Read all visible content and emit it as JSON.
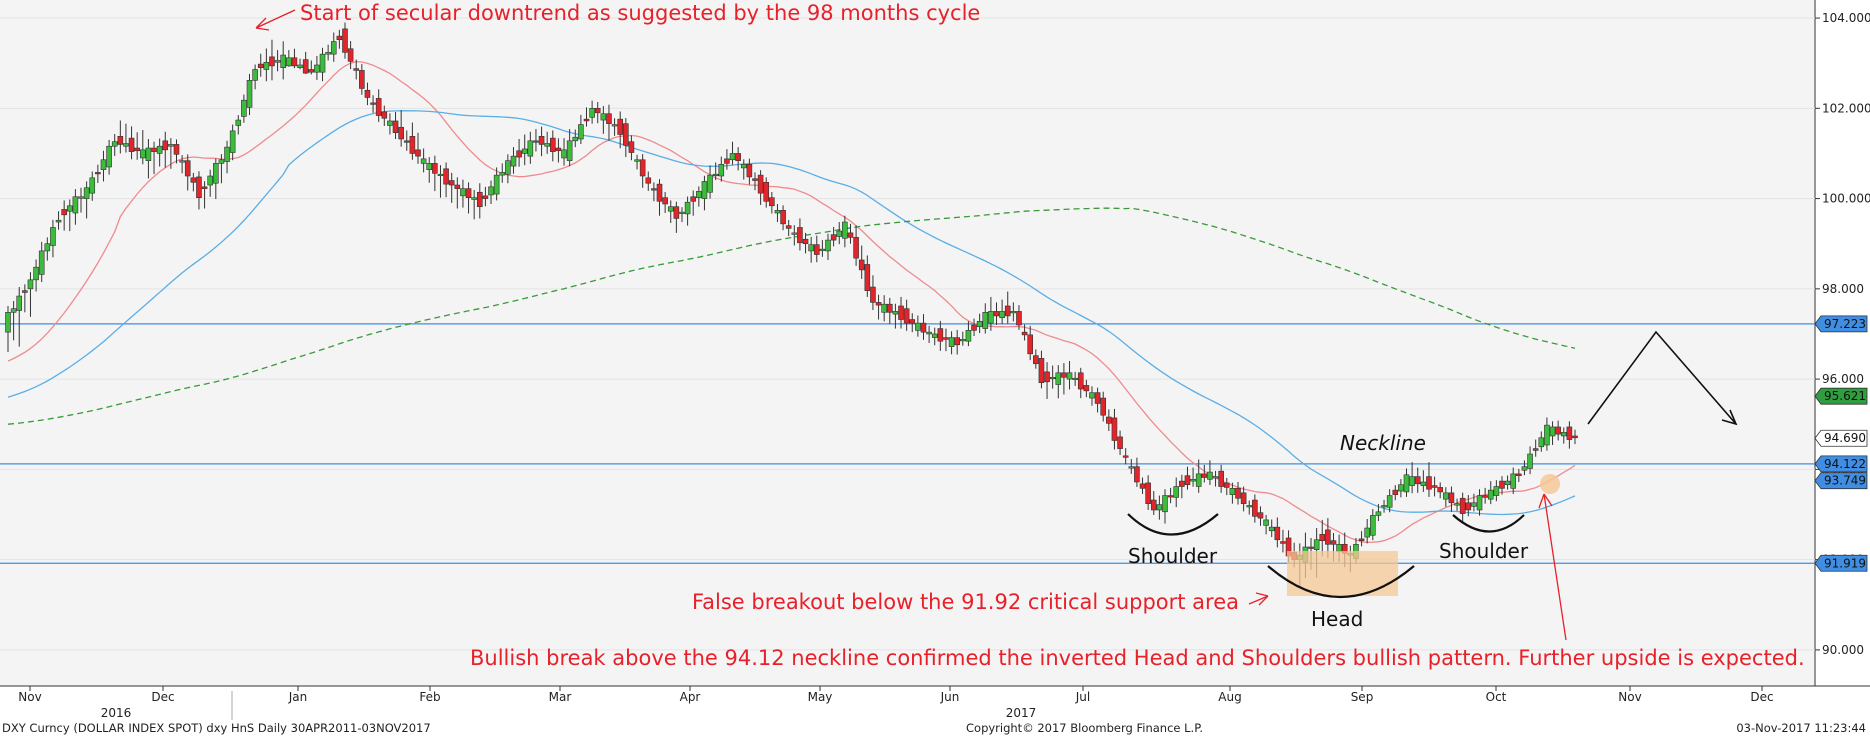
{
  "chart_data": {
    "type": "candlestick",
    "instrument": "DXY Curncy (DOLLAR INDEX SPOT) dxy HnS  Daily 30APR2011-03NOV2017",
    "copyright": "Copyright© 2017 Bloomberg Finance L.P.",
    "timestamp": "03-Nov-2017 11:23:44",
    "ylim": [
      89.2,
      104.4
    ],
    "y_ticks": [
      "90.000",
      "92.000",
      "94.000",
      "96.000",
      "98.000",
      "100.000",
      "102.000",
      "104.000"
    ],
    "x_months": [
      "Nov",
      "Dec",
      "Jan",
      "Feb",
      "Mar",
      "Apr",
      "May",
      "Jun",
      "Jul",
      "Aug",
      "Sep",
      "Oct",
      "Nov",
      "Dec"
    ],
    "x_years": [
      "2016",
      "2017"
    ],
    "levels": [
      {
        "label": "97.223",
        "value": 97.223,
        "color": "#3f8ee3"
      },
      {
        "label": "94.122",
        "value": 94.122,
        "color": "#3f8ee3"
      },
      {
        "label": "91.919",
        "value": 91.919,
        "color": "#3f8ee3"
      }
    ],
    "last_values": [
      {
        "label": "95.621",
        "value": 95.621,
        "color": "#2e9e3e"
      },
      {
        "label": "94.690",
        "value": 94.69,
        "color": "#ffffff"
      },
      {
        "label": "93.749",
        "value": 93.749,
        "color": "#3f8ee3"
      }
    ],
    "ohlc_weekly_approx": [
      [
        97.2,
        98.4,
        96.0,
        98.2
      ],
      [
        98.2,
        99.8,
        97.9,
        99.6
      ],
      [
        99.6,
        100.4,
        99.0,
        100.2
      ],
      [
        100.2,
        101.5,
        99.9,
        101.3
      ],
      [
        101.3,
        101.9,
        100.8,
        101.0
      ],
      [
        101.0,
        101.4,
        100.3,
        101.2
      ],
      [
        101.2,
        101.3,
        99.7,
        100.1
      ],
      [
        100.1,
        101.2,
        99.5,
        101.1
      ],
      [
        101.1,
        103.0,
        100.9,
        102.9
      ],
      [
        102.9,
        103.6,
        102.5,
        103.1
      ],
      [
        103.1,
        103.3,
        102.9,
        102.8
      ],
      [
        102.8,
        103.8,
        102.6,
        103.6
      ],
      [
        103.6,
        103.8,
        102.0,
        102.2
      ],
      [
        102.2,
        102.4,
        101.3,
        101.5
      ],
      [
        101.5,
        102.0,
        100.6,
        100.8
      ],
      [
        100.8,
        101.0,
        99.6,
        100.3
      ],
      [
        100.3,
        100.5,
        99.3,
        99.9
      ],
      [
        99.9,
        101.0,
        99.7,
        100.8
      ],
      [
        100.8,
        101.7,
        100.5,
        101.3
      ],
      [
        101.3,
        101.6,
        100.7,
        101.0
      ],
      [
        101.0,
        102.3,
        100.9,
        102.0
      ],
      [
        102.0,
        102.2,
        101.0,
        101.5
      ],
      [
        101.5,
        101.6,
        100.0,
        100.3
      ],
      [
        100.3,
        100.4,
        99.2,
        99.6
      ],
      [
        99.6,
        100.4,
        99.2,
        100.3
      ],
      [
        100.3,
        101.3,
        100.2,
        101.0
      ],
      [
        101.0,
        101.1,
        99.9,
        100.2
      ],
      [
        100.2,
        100.3,
        99.1,
        99.3
      ],
      [
        99.3,
        99.5,
        98.5,
        98.8
      ],
      [
        98.8,
        99.6,
        98.6,
        99.4
      ],
      [
        99.4,
        99.8,
        97.5,
        97.7
      ],
      [
        97.7,
        97.9,
        97.0,
        97.4
      ],
      [
        97.4,
        97.6,
        96.8,
        97.0
      ],
      [
        97.0,
        97.2,
        96.5,
        96.8
      ],
      [
        96.8,
        97.6,
        96.7,
        97.4
      ],
      [
        97.4,
        97.9,
        97.2,
        97.5
      ],
      [
        97.5,
        97.7,
        95.9,
        96.0
      ],
      [
        96.0,
        96.4,
        95.5,
        96.1
      ],
      [
        96.1,
        96.2,
        95.3,
        95.5
      ],
      [
        95.5,
        95.7,
        94.0,
        94.2
      ],
      [
        94.2,
        94.4,
        93.0,
        93.1
      ],
      [
        93.1,
        93.9,
        92.8,
        93.7
      ],
      [
        93.7,
        94.3,
        93.6,
        93.9
      ],
      [
        93.9,
        94.0,
        93.2,
        93.4
      ],
      [
        93.4,
        93.5,
        92.6,
        92.8
      ],
      [
        92.8,
        93.1,
        91.8,
        92.0
      ],
      [
        92.0,
        92.9,
        91.1,
        92.5
      ],
      [
        92.5,
        92.8,
        91.6,
        92.1
      ],
      [
        92.1,
        93.3,
        92.0,
        93.1
      ],
      [
        93.1,
        93.9,
        93.0,
        93.8
      ],
      [
        93.8,
        94.2,
        93.4,
        93.6
      ],
      [
        93.6,
        93.7,
        92.9,
        93.1
      ],
      [
        93.1,
        93.7,
        93.0,
        93.5
      ],
      [
        93.5,
        94.0,
        93.4,
        93.9
      ],
      [
        93.9,
        95.1,
        93.8,
        94.9
      ],
      [
        94.9,
        95.0,
        94.5,
        94.7
      ]
    ],
    "series": [
      {
        "name": "",
        "color": "#f08a8f",
        "style": "solid"
      },
      {
        "name": "",
        "color": "#5aaee6",
        "style": "solid"
      },
      {
        "name": "",
        "color": "#3a9a3a",
        "style": "dashed"
      }
    ]
  },
  "annotations": {
    "cycle": "Start of secular downtrend as suggested by the 98 months cycle",
    "neckline": "Neckline",
    "shoulder_left": "Shoulder",
    "shoulder_right": "Shoulder",
    "head": "Head",
    "false_breakout": "False breakout below the 91.92 critical support area",
    "bullish": "Bullish break above the 94.12 neckline confirmed the inverted Head and Shoulders bullish pattern. Further upside is expected."
  }
}
